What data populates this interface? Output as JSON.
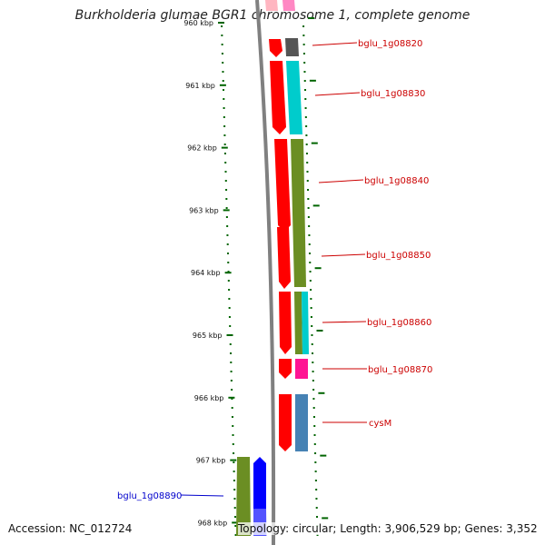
{
  "title": "Burkholderia glumae BGR1 chromosome 1, complete genome",
  "accession": "Accession: NC_012724",
  "topology": "Topology: circular; Length: 3,906,529 bp; Genes: 3,352",
  "kbp_labels": [
    {
      "text": "960 kbp",
      "kb": 960
    },
    {
      "text": "961 kbp",
      "kb": 961
    },
    {
      "text": "962 kbp",
      "kb": 962
    },
    {
      "text": "963 kbp",
      "kb": 963
    },
    {
      "text": "964 kbp",
      "kb": 964
    },
    {
      "text": "965 kbp",
      "kb": 965
    },
    {
      "text": "966 kbp",
      "kb": 966
    },
    {
      "text": "967 kbp",
      "kb": 967
    },
    {
      "text": "968 kbp",
      "kb": 968
    }
  ],
  "gene_labels": [
    {
      "text": "bglu_1g08820",
      "color": "#cc0000"
    },
    {
      "text": "bglu_1g08830",
      "color": "#cc0000"
    },
    {
      "text": "bglu_1g08840",
      "color": "#cc0000"
    },
    {
      "text": "bglu_1g08850",
      "color": "#cc0000"
    },
    {
      "text": "bglu_1g08860",
      "color": "#cc0000"
    },
    {
      "text": "bglu_1g08870",
      "color": "#cc0000"
    },
    {
      "text": "cysM",
      "color": "#cc0000"
    },
    {
      "text": "bglu_1g08890",
      "color": "#0000cc"
    }
  ],
  "colors": {
    "cds": "#ff0000",
    "olive": "#6b8e23",
    "cyan": "#00cccc",
    "gray": "#555555",
    "magenta": "#ff1493",
    "pink": "#ffb6c1",
    "steelblue": "#4682b4",
    "blue": "#0000ff",
    "backbone": "#808080",
    "tick": "#006400"
  }
}
